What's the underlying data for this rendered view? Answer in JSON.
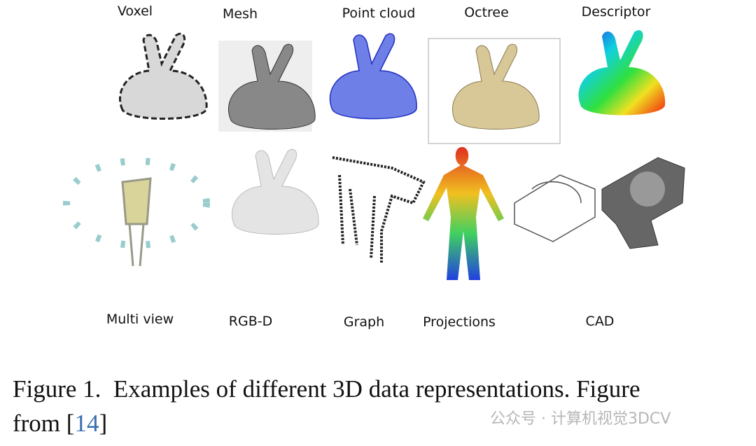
{
  "figure": {
    "labels": [
      "Voxel",
      "Mesh",
      "Point cloud",
      "Octree",
      "Descriptor",
      "Multi view",
      "RGB-D",
      "Graph",
      "Projections",
      "CAD"
    ],
    "caption": {
      "label": "Figure 1.",
      "text": "Examples of different 3D data representations. Figure",
      "text2": "from",
      "citation": [
        "[",
        "14",
        "]"
      ]
    },
    "watermark": "公众号 · 计算机视觉3DCV"
  }
}
